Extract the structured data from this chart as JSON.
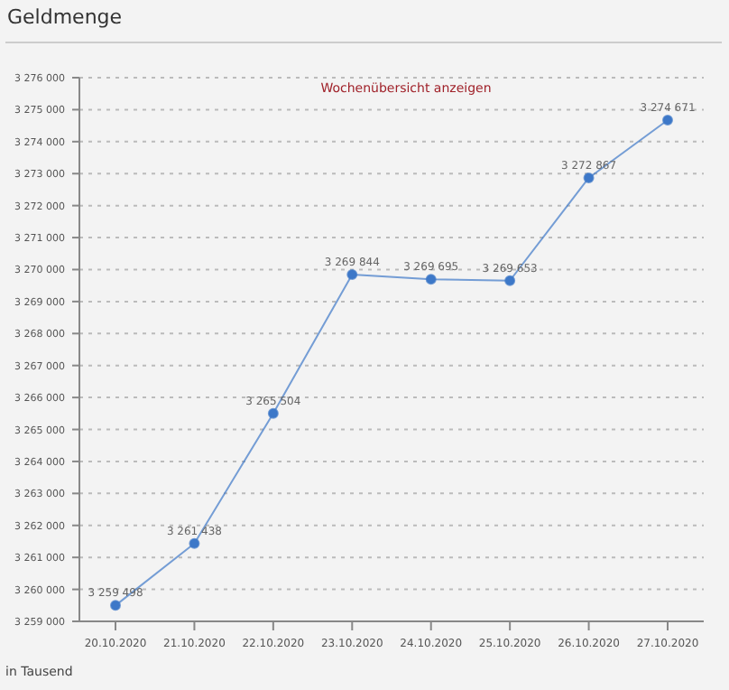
{
  "chart_data": {
    "type": "line",
    "title": "Geldmenge",
    "categories": [
      "20.10.2020",
      "21.10.2020",
      "22.10.2020",
      "23.10.2020",
      "24.10.2020",
      "25.10.2020",
      "26.10.2020",
      "27.10.2020"
    ],
    "series": [
      {
        "color": "#3d78c8",
        "values": [
          3259498,
          3261438,
          3265504,
          3269844,
          3269695,
          3269653,
          3272867,
          3274671
        ],
        "value_labels": [
          "3 259 498",
          "3 261 438",
          "3 265 504",
          "3 269 844",
          "3 269 695",
          "3 269 653",
          "3 272 867",
          "3 274 671"
        ]
      }
    ],
    "ylim": [
      3259000,
      3276000
    ],
    "yticks": [
      {
        "value": 3259000,
        "label": "3 259 000"
      },
      {
        "value": 3260000,
        "label": "3 260 000"
      },
      {
        "value": 3261000,
        "label": "3 261 000"
      },
      {
        "value": 3262000,
        "label": "3 262 000"
      },
      {
        "value": 3263000,
        "label": "3 263 000"
      },
      {
        "value": 3264000,
        "label": "3 264 000"
      },
      {
        "value": 3265000,
        "label": "3 265 000"
      },
      {
        "value": 3266000,
        "label": "3 266 000"
      },
      {
        "value": 3267000,
        "label": "3 267 000"
      },
      {
        "value": 3268000,
        "label": "3 268 000"
      },
      {
        "value": 3269000,
        "label": "3 269 000"
      },
      {
        "value": 3270000,
        "label": "3 270 000"
      },
      {
        "value": 3271000,
        "label": "3 271 000"
      },
      {
        "value": 3272000,
        "label": "3 272 000"
      },
      {
        "value": 3273000,
        "label": "3 273 000"
      },
      {
        "value": 3274000,
        "label": "3 274 000"
      },
      {
        "value": 3275000,
        "label": "3 275 000"
      },
      {
        "value": 3276000,
        "label": "3 276 000"
      }
    ],
    "grid": "y",
    "marker": "circle",
    "line_style": "solid",
    "legend": false,
    "annotations": [
      "Wochenübersicht anzeigen",
      "in Tausend"
    ]
  }
}
